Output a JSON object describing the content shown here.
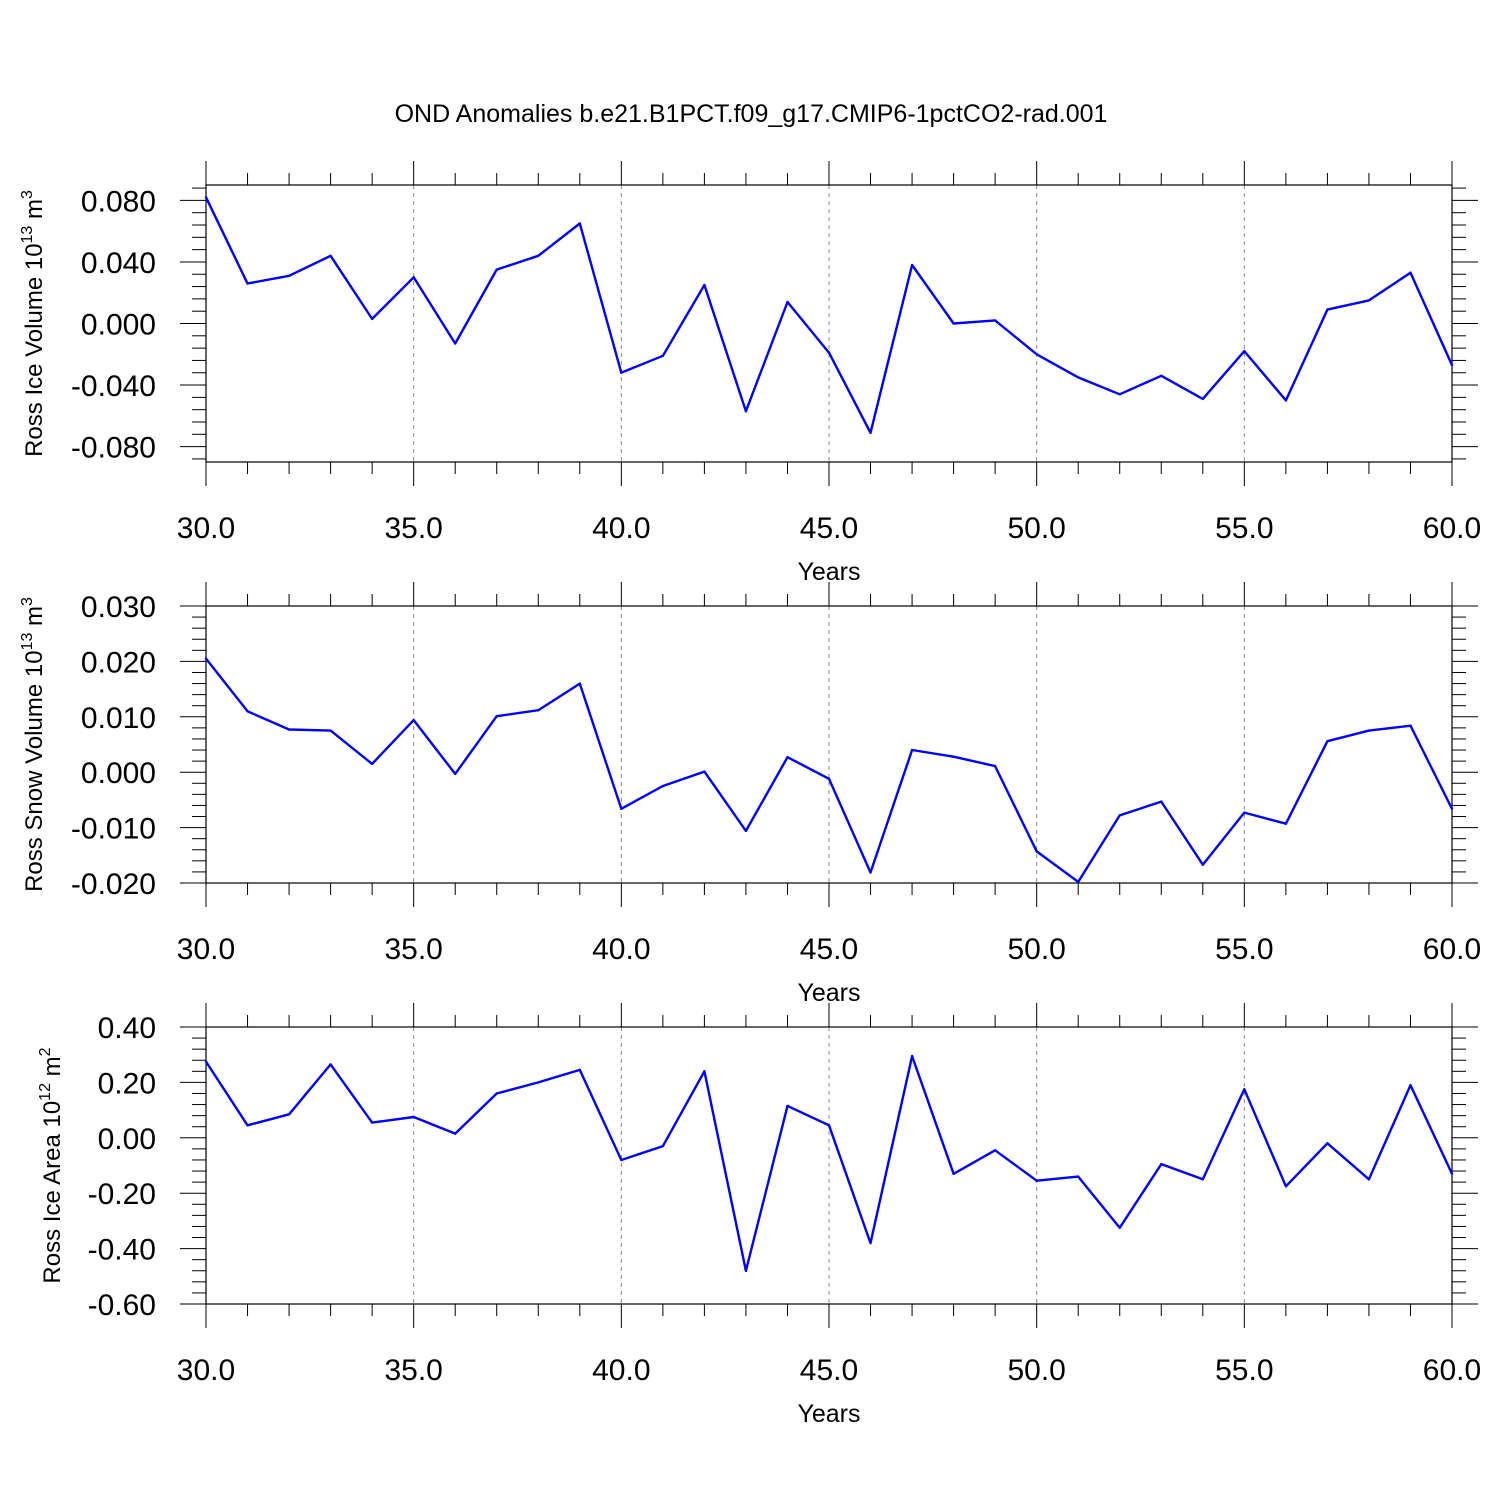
{
  "title": "OND Anomalies b.e21.B1PCT.f09_g17.CMIP6-1pctCO2-rad.001",
  "colors": {
    "series": "#0000ff",
    "axis": "#000000",
    "grid": "#888888"
  },
  "chart_data": [
    {
      "type": "line",
      "ylabel_main": "Ross Ice Volume 10",
      "ylabel_exp": "13",
      "ylabel_unit": " m",
      "ylabel_unit_exp": "3",
      "xlabel": "Years",
      "xlim": [
        30,
        60
      ],
      "ylim": [
        -0.09,
        0.09
      ],
      "yticks": [
        0.08,
        0.04,
        0.0,
        -0.04,
        -0.08
      ],
      "yticklabels": [
        "0.080",
        "0.040",
        "0.000",
        "-0.040",
        "-0.080"
      ],
      "xticks": [
        30,
        35,
        40,
        45,
        50,
        55,
        60
      ],
      "xticklabels": [
        "30.0",
        "35.0",
        "40.0",
        "45.0",
        "50.0",
        "55.0",
        "60.0"
      ],
      "x": [
        30,
        31,
        32,
        33,
        34,
        35,
        36,
        37,
        38,
        39,
        40,
        41,
        42,
        43,
        44,
        45,
        46,
        47,
        48,
        49,
        50,
        51,
        52,
        53,
        54,
        55,
        56,
        57,
        58,
        59,
        60
      ],
      "values": [
        0.082,
        0.026,
        0.031,
        0.044,
        0.003,
        0.03,
        -0.013,
        0.035,
        0.044,
        0.065,
        -0.032,
        -0.021,
        0.025,
        -0.057,
        0.014,
        -0.019,
        -0.071,
        0.038,
        0.0,
        0.002,
        -0.02,
        -0.035,
        -0.046,
        -0.034,
        -0.049,
        -0.018,
        -0.05,
        0.009,
        0.015,
        0.033,
        -0.027
      ]
    },
    {
      "type": "line",
      "ylabel_main": "Ross Snow Volume 10",
      "ylabel_exp": "13",
      "ylabel_unit": " m",
      "ylabel_unit_exp": "3",
      "xlabel": "Years",
      "xlim": [
        30,
        60
      ],
      "ylim": [
        -0.02,
        0.03
      ],
      "yticks": [
        0.03,
        0.02,
        0.01,
        0.0,
        -0.01,
        -0.02
      ],
      "yticklabels": [
        "0.030",
        "0.020",
        "0.010",
        "0.000",
        "-0.010",
        "-0.020"
      ],
      "xticks": [
        30,
        35,
        40,
        45,
        50,
        55,
        60
      ],
      "xticklabels": [
        "30.0",
        "35.0",
        "40.0",
        "45.0",
        "50.0",
        "55.0",
        "60.0"
      ],
      "x": [
        30,
        31,
        32,
        33,
        34,
        35,
        36,
        37,
        38,
        39,
        40,
        41,
        42,
        43,
        44,
        45,
        46,
        47,
        48,
        49,
        50,
        51,
        52,
        53,
        54,
        55,
        56,
        57,
        58,
        59,
        60
      ],
      "values": [
        0.0205,
        0.011,
        0.0077,
        0.0075,
        0.0015,
        0.0094,
        -0.0003,
        0.0101,
        0.0112,
        0.016,
        -0.0066,
        -0.0025,
        0.0001,
        -0.0106,
        0.0027,
        -0.0012,
        -0.0181,
        0.004,
        0.0028,
        0.0011,
        -0.0143,
        -0.0198,
        -0.0078,
        -0.0053,
        -0.0167,
        -0.0073,
        -0.0093,
        0.0056,
        0.0075,
        0.0084,
        -0.0066
      ]
    },
    {
      "type": "line",
      "ylabel_main": "Ross Ice Area 10",
      "ylabel_exp": "12",
      "ylabel_unit": " m",
      "ylabel_unit_exp": "2",
      "xlabel": "Years",
      "xlim": [
        30,
        60
      ],
      "ylim": [
        -0.6,
        0.4
      ],
      "yticks": [
        0.4,
        0.2,
        0.0,
        -0.2,
        -0.4,
        -0.6
      ],
      "yticklabels": [
        "0.40",
        "0.20",
        "0.00",
        "-0.20",
        "-0.40",
        "-0.60"
      ],
      "xticks": [
        30,
        35,
        40,
        45,
        50,
        55,
        60
      ],
      "xticklabels": [
        "30.0",
        "35.0",
        "40.0",
        "45.0",
        "50.0",
        "55.0",
        "60.0"
      ],
      "x": [
        30,
        31,
        32,
        33,
        34,
        35,
        36,
        37,
        38,
        39,
        40,
        41,
        42,
        43,
        44,
        45,
        46,
        47,
        48,
        49,
        50,
        51,
        52,
        53,
        54,
        55,
        56,
        57,
        58,
        59,
        60
      ],
      "values": [
        0.275,
        0.045,
        0.085,
        0.265,
        0.055,
        0.075,
        0.015,
        0.16,
        0.2,
        0.245,
        -0.08,
        -0.03,
        0.24,
        -0.48,
        0.115,
        0.045,
        -0.38,
        0.295,
        -0.13,
        -0.045,
        -0.155,
        -0.14,
        -0.325,
        -0.095,
        -0.15,
        0.175,
        -0.175,
        -0.02,
        -0.15,
        0.19,
        -0.13
      ]
    }
  ]
}
